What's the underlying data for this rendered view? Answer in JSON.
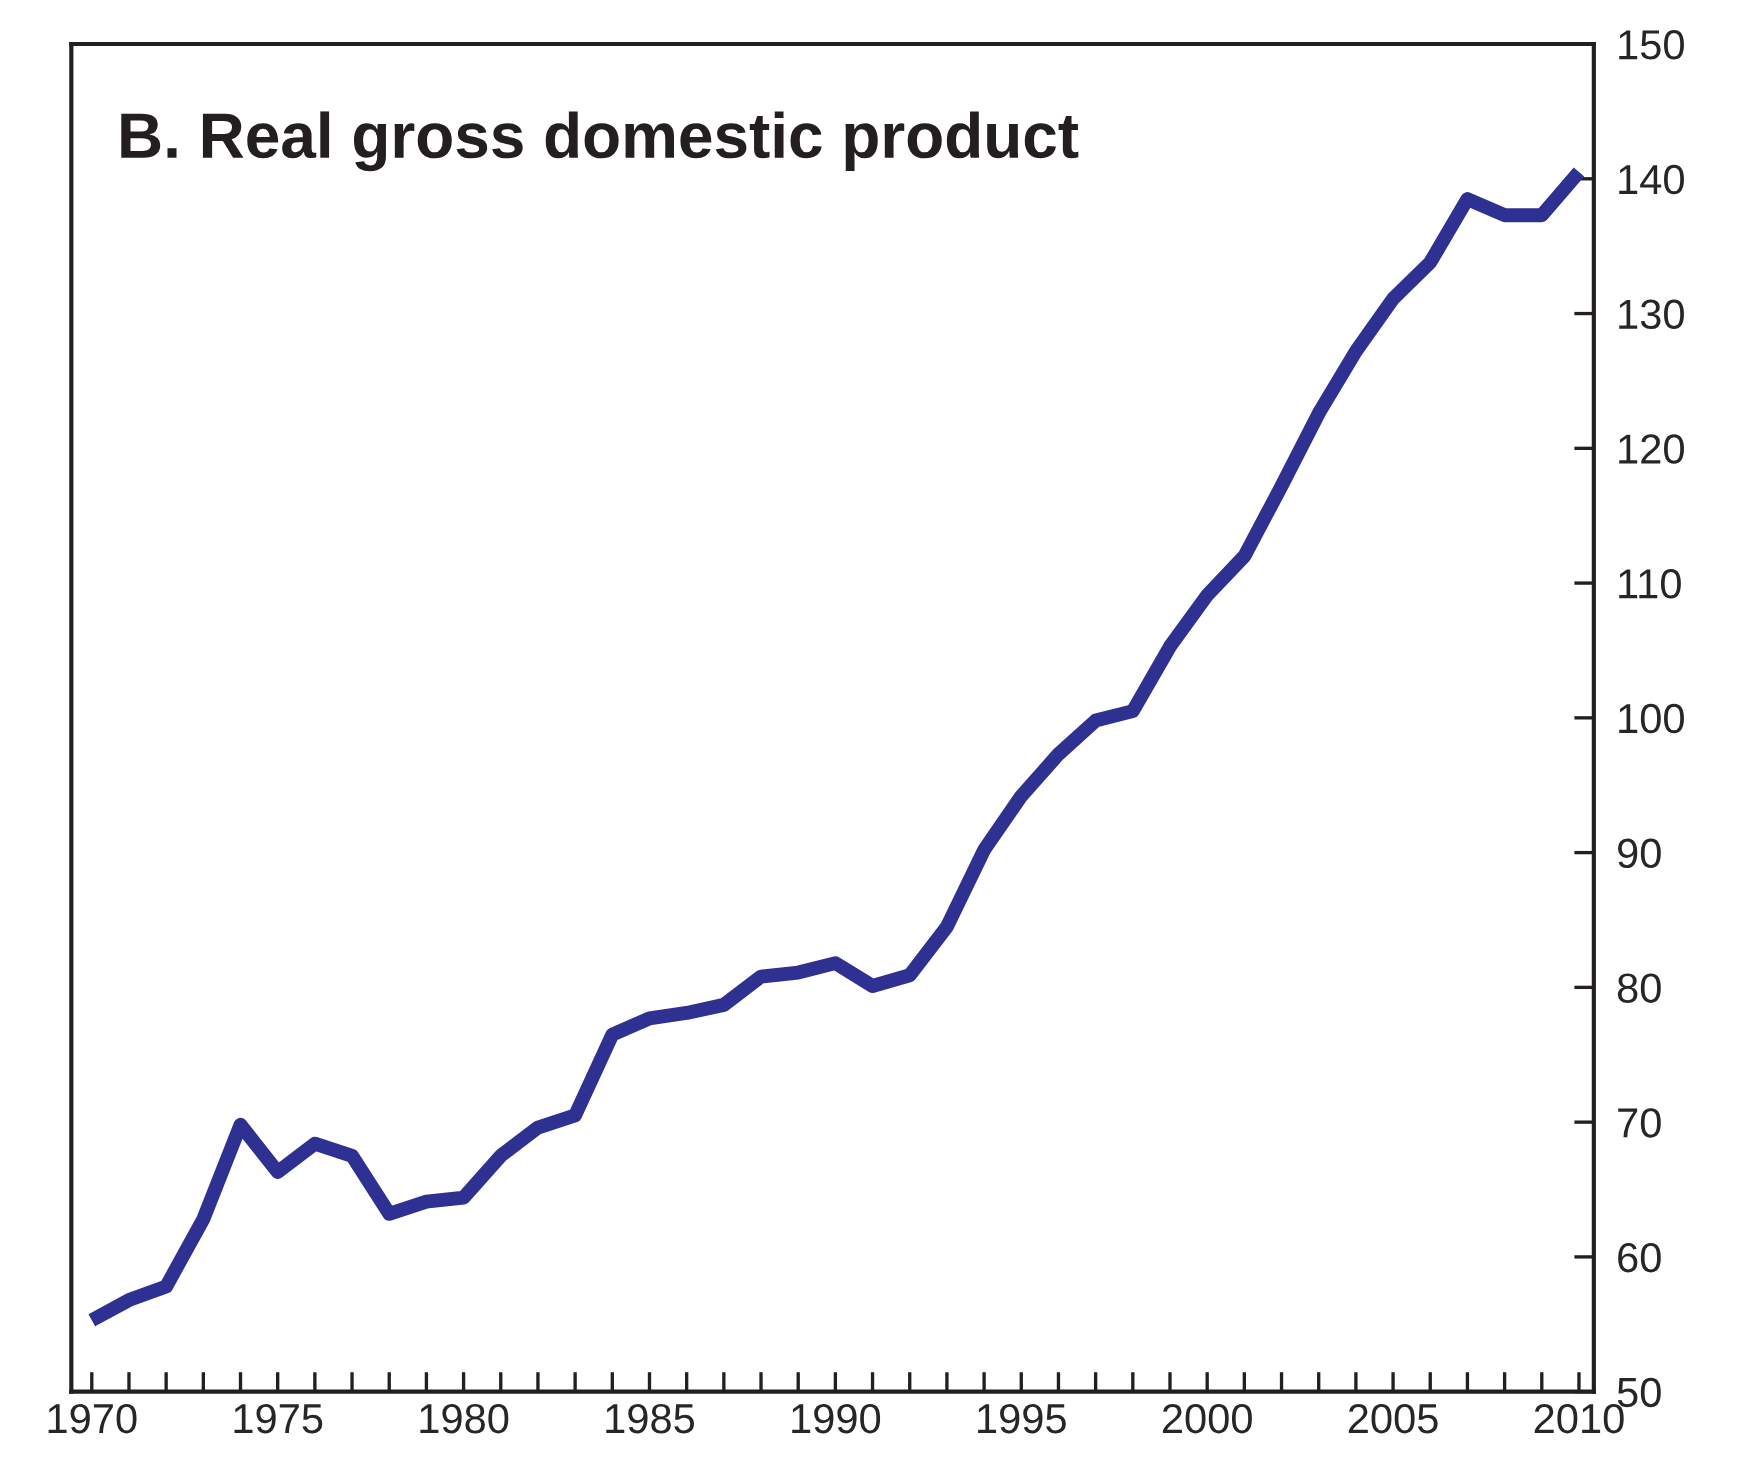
{
  "chart_data": {
    "type": "line",
    "title": "B. Real gross domestic product",
    "x": [
      1970,
      1971,
      1972,
      1973,
      1974,
      1975,
      1976,
      1977,
      1978,
      1979,
      1980,
      1981,
      1982,
      1983,
      1984,
      1985,
      1986,
      1987,
      1988,
      1989,
      1990,
      1991,
      1992,
      1993,
      1994,
      1995,
      1996,
      1997,
      1998,
      1999,
      2000,
      2001,
      2002,
      2003,
      2004,
      2005,
      2006,
      2007,
      2008,
      2009,
      2010
    ],
    "series": [
      {
        "color": "#2e3192",
        "values": [
          55.3,
          56.8,
          57.8,
          62.8,
          69.8,
          66.3,
          68.4,
          67.5,
          63.2,
          64.1,
          64.4,
          67.5,
          69.6,
          70.5,
          76.5,
          77.7,
          78.1,
          78.7,
          80.8,
          81.1,
          81.8,
          80.1,
          80.9,
          84.5,
          90.2,
          94.2,
          97.3,
          99.8,
          100.5,
          105.3,
          109.1,
          112.0,
          117.2,
          122.6,
          127.2,
          131.1,
          133.8,
          138.5,
          137.3,
          137.3,
          140.5
        ]
      }
    ],
    "xlim": [
      1969.45,
      2010.4
    ],
    "ylim": [
      50,
      150
    ],
    "xticks": [
      1970,
      {
        "value": 1971,
        "label": null
      },
      {
        "value": 1972,
        "label": null
      },
      {
        "value": 1973,
        "label": null
      },
      {
        "value": 1974,
        "label": null
      },
      1975,
      {
        "value": 1976,
        "label": null
      },
      {
        "value": 1977,
        "label": null
      },
      {
        "value": 1978,
        "label": null
      },
      {
        "value": 1979,
        "label": null
      },
      1980,
      {
        "value": 1981,
        "label": null
      },
      {
        "value": 1982,
        "label": null
      },
      {
        "value": 1983,
        "label": null
      },
      {
        "value": 1984,
        "label": null
      },
      1985,
      {
        "value": 1986,
        "label": null
      },
      {
        "value": 1987,
        "label": null
      },
      {
        "value": 1988,
        "label": null
      },
      {
        "value": 1989,
        "label": null
      },
      1990,
      {
        "value": 1991,
        "label": null
      },
      {
        "value": 1992,
        "label": null
      },
      {
        "value": 1993,
        "label": null
      },
      {
        "value": 1994,
        "label": null
      },
      1995,
      {
        "value": 1996,
        "label": null
      },
      {
        "value": 1997,
        "label": null
      },
      {
        "value": 1998,
        "label": null
      },
      {
        "value": 1999,
        "label": null
      },
      2000,
      {
        "value": 2001,
        "label": null
      },
      {
        "value": 2002,
        "label": null
      },
      {
        "value": 2003,
        "label": null
      },
      {
        "value": 2004,
        "label": null
      },
      2005,
      {
        "value": 2006,
        "label": null
      },
      {
        "value": 2007,
        "label": null
      },
      {
        "value": 2008,
        "label": null
      },
      {
        "value": 2009,
        "label": null
      },
      2010
    ],
    "yticks": [
      50,
      60,
      70,
      80,
      90,
      100,
      110,
      120,
      130,
      140,
      150
    ],
    "grid": false,
    "legend": false,
    "marker": "none",
    "line_style": "solid"
  }
}
